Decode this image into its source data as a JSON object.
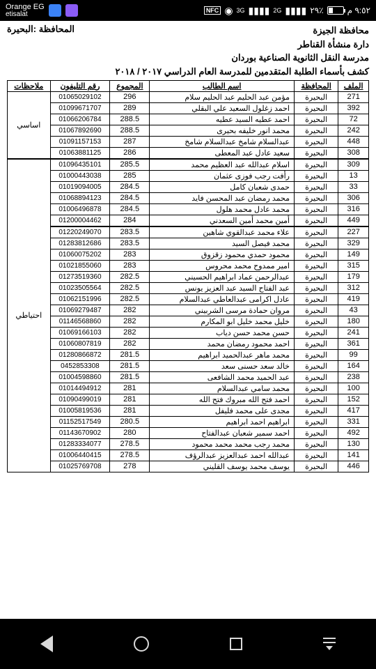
{
  "status": {
    "carrier": "Orange EG",
    "sub": "etisalat",
    "nfc": "NFC",
    "net1": "3G",
    "net2": "2G",
    "battery_pct": "٪٢٩",
    "time": "٩:٥٢ م"
  },
  "header": {
    "gov_right1": "محافظة الجيزة",
    "gov_right2": "دارة منشأة القناطر",
    "gov_right3": "مدرسة النقل الثانوية الصناعية بوردان",
    "gov_left": "المحافظة :البحيرة",
    "title": "كشف بأسماء الطلبة المتقدمين للمدرسة العام الدراسي ٢٠١٧ / ٢٠١٨"
  },
  "cols": {
    "c1": "الملف",
    "c2": "المحافظة",
    "c3": "اسم الطالب",
    "c4": "المجموع",
    "c5": "رقم التليفون",
    "c6": "ملاحظات"
  },
  "notes": {
    "n1": "اساسي",
    "n2": "احتياطي"
  },
  "rows": [
    {
      "f": "271",
      "g": "البحيرة",
      "n": "مؤمن عبد الحليم عبد الحليم سلام",
      "t": "296",
      "p": "01065029102"
    },
    {
      "f": "392",
      "g": "البحيرة",
      "n": "احمد زغلول السعيد علي البقلي",
      "t": "289",
      "p": "01099671707"
    },
    {
      "f": "72",
      "g": "البحيرة",
      "n": "احمد عطيه السيد عطيه",
      "t": "288.5",
      "p": "01066206784"
    },
    {
      "f": "242",
      "g": "البحيرة",
      "n": "محمد انور خليفه بحيرى",
      "t": "288.5",
      "p": "01067892690"
    },
    {
      "f": "448",
      "g": "البحيرة",
      "n": "عبدالسلام شامخ عبدالسلام شامخ",
      "t": "287",
      "p": "01091157153"
    },
    {
      "f": "308",
      "g": "البحيرة",
      "n": "سعيد عادل عبد المعطى",
      "t": "286",
      "p": "01063881125"
    },
    {
      "f": "309",
      "g": "البحيرة",
      "n": "اسلام عبدالله عبد العظيم محمد",
      "t": "285.5",
      "p": "01096435101"
    },
    {
      "f": "13",
      "g": "البحيرة",
      "n": "رأفت رجب فوزى عثمان",
      "t": "285",
      "p": "01000443038"
    },
    {
      "f": "33",
      "g": "البحيرة",
      "n": "حمدى شعبان كامل",
      "t": "284.5",
      "p": "01019094005"
    },
    {
      "f": "306",
      "g": "البحيرة",
      "n": "محمد رمضان عبد المحسن فايد",
      "t": "284.5",
      "p": "01068894123"
    },
    {
      "f": "316",
      "g": "البحيرة",
      "n": "محمد عادل محمد هلول",
      "t": "284.5",
      "p": "01006496878"
    },
    {
      "f": "449",
      "g": "البحيرة",
      "n": "أمين محمد أمين السعدني",
      "t": "284",
      "p": "01200004462"
    },
    {
      "f": "227",
      "g": "البحيرة",
      "n": "علاء محمد عبدالقوي شاهين",
      "t": "283.5",
      "p": "01220249070"
    },
    {
      "f": "329",
      "g": "البحيرة",
      "n": "محمد فيصل السيد",
      "t": "283.5",
      "p": "01283812686"
    },
    {
      "f": "149",
      "g": "البحيرة",
      "n": "محمود حمدي محمود زقزوق",
      "t": "283",
      "p": "01060075202"
    },
    {
      "f": "315",
      "g": "البحيرة",
      "n": "امير ممدوح محمد محروس",
      "t": "283",
      "p": "01021855060"
    },
    {
      "f": "179",
      "g": "البحيرة",
      "n": "عبدالرحمن عماد ابراهيم الحسيني",
      "t": "282.5",
      "p": "01273519360"
    },
    {
      "f": "312",
      "g": "البحيرة",
      "n": "عبد الفتاح السيد عبد العزيز يونس",
      "t": "282.5",
      "p": "01023505564"
    },
    {
      "f": "419",
      "g": "البحيرة",
      "n": "عادل اكرامى عبدالعاطي عبدالسلام",
      "t": "282.5",
      "p": "01062151996"
    },
    {
      "f": "43",
      "g": "البحيرة",
      "n": "مروان حمادة مرسى الشربيني",
      "t": "282",
      "p": "01069279487"
    },
    {
      "f": "180",
      "g": "البحيرة",
      "n": "خليل محمد خليل ابو المكارم",
      "t": "282",
      "p": "01146568860"
    },
    {
      "f": "241",
      "g": "البحيرة",
      "n": "حسن محمد حسن دياب",
      "t": "282",
      "p": "01069166103"
    },
    {
      "f": "361",
      "g": "البحيرة",
      "n": "احمد محمود رمضان محمد",
      "t": "282",
      "p": "01060807819"
    },
    {
      "f": "99",
      "g": "البحيرة",
      "n": "محمد ماهر عبدالحميد ابراهيم",
      "t": "281.5",
      "p": "01280866872"
    },
    {
      "f": "164",
      "g": "البحيرة",
      "n": "خالد سعد حسنى سعد",
      "t": "281.5",
      "p": "0452853308"
    },
    {
      "f": "238",
      "g": "البحيرة",
      "n": "عبد الحميد محمد الشافعى",
      "t": "281.5",
      "p": "01004598860"
    },
    {
      "f": "100",
      "g": "البحيرة",
      "n": "محمد سامي عبدالسلام",
      "t": "281",
      "p": "01014494912"
    },
    {
      "f": "152",
      "g": "البحيرة",
      "n": "احمد فتح الله مبروك فتح الله",
      "t": "281",
      "p": "01090499019"
    },
    {
      "f": "417",
      "g": "البحيرة",
      "n": "مجدى على محمد فليفل",
      "t": "281",
      "p": "01005819536"
    },
    {
      "f": "331",
      "g": "البحيرة",
      "n": "ابراهيم احمد ابراهيم",
      "t": "280.5",
      "p": "01152517549"
    },
    {
      "f": "492",
      "g": "البحيرة",
      "n": "احمد سمير شعبان عبدالفتاح",
      "t": "280",
      "p": "01143670902"
    },
    {
      "f": "130",
      "g": "البحيرة",
      "n": "محمد رجب محمد محمد محمود",
      "t": "278.5",
      "p": "01283334077"
    },
    {
      "f": "141",
      "g": "البحيرة",
      "n": "عبدالله احمد عبدالعزيز عبدالرؤف",
      "t": "278.5",
      "p": "01006440415"
    },
    {
      "f": "446",
      "g": "البحيرة",
      "n": "يوسف محمد يوسف القليني",
      "t": "278",
      "p": "01025769708"
    }
  ]
}
